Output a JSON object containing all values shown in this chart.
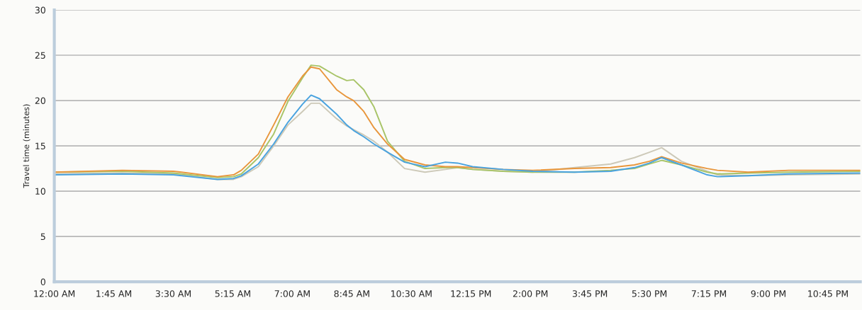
{
  "chart_data": {
    "type": "line",
    "ylabel": "Travel time (minutes)",
    "xlim": [
      0,
      23.7
    ],
    "ylim": [
      0,
      30
    ],
    "xticks": [
      {
        "value": 0,
        "label": "12:00 AM"
      },
      {
        "value": 1.75,
        "label": "1:45 AM"
      },
      {
        "value": 3.5,
        "label": "3:30 AM"
      },
      {
        "value": 5.25,
        "label": "5:15 AM"
      },
      {
        "value": 7,
        "label": "7:00 AM"
      },
      {
        "value": 8.75,
        "label": "8:45 AM"
      },
      {
        "value": 10.5,
        "label": "10:30 AM"
      },
      {
        "value": 12.25,
        "label": "12:15 PM"
      },
      {
        "value": 14,
        "label": "2:00 PM"
      },
      {
        "value": 15.75,
        "label": "3:45 PM"
      },
      {
        "value": 17.5,
        "label": "5:30 PM"
      },
      {
        "value": 19.25,
        "label": "7:15 PM"
      },
      {
        "value": 21,
        "label": "9:00 PM"
      },
      {
        "value": 22.75,
        "label": "10:45 PM"
      }
    ],
    "yticks": [
      0,
      5,
      10,
      15,
      20,
      25,
      30
    ],
    "grid": "y",
    "marker": "none",
    "line_style": "solid",
    "x": [
      0,
      2,
      3.5,
      4.8,
      5.27,
      5.5,
      6.0,
      6.45,
      6.87,
      7.3,
      7.55,
      7.8,
      8.3,
      8.6,
      8.8,
      9.1,
      9.4,
      9.8,
      10.3,
      10.9,
      11.5,
      11.86,
      12.3,
      13.2,
      14.07,
      15.3,
      16.36,
      17.06,
      17.5,
      17.86,
      18.44,
      19.2,
      19.5,
      20.4,
      21.6,
      23.7
    ],
    "series": [
      {
        "color": "#cdc9b8",
        "values": [
          11.9,
          12.0,
          11.9,
          11.3,
          11.3,
          11.6,
          12.7,
          15.0,
          17.3,
          18.8,
          19.7,
          19.7,
          18.0,
          17.2,
          16.8,
          16.2,
          15.5,
          14.3,
          12.5,
          12.1,
          12.4,
          12.6,
          12.4,
          12.2,
          12.1,
          12.6,
          13.0,
          13.7,
          14.3,
          14.8,
          13.3,
          12.2,
          11.8,
          11.7,
          11.8,
          11.9
        ]
      },
      {
        "color": "#a8c468",
        "values": [
          12.1,
          12.2,
          12.0,
          11.5,
          11.6,
          11.9,
          13.7,
          16.3,
          19.9,
          22.5,
          23.9,
          23.8,
          22.7,
          22.2,
          22.3,
          21.2,
          19.3,
          15.5,
          13.3,
          12.5,
          12.6,
          12.6,
          12.4,
          12.2,
          12.1,
          12.1,
          12.3,
          12.5,
          13.0,
          13.4,
          12.9,
          12.1,
          11.9,
          12.0,
          12.1,
          12.2
        ]
      },
      {
        "color": "#e8963c",
        "values": [
          12.1,
          12.3,
          12.2,
          11.6,
          11.8,
          12.3,
          14.1,
          17.3,
          20.4,
          22.7,
          23.7,
          23.5,
          21.2,
          20.4,
          20.0,
          18.8,
          17.0,
          15.2,
          13.5,
          12.9,
          12.7,
          12.7,
          12.6,
          12.4,
          12.3,
          12.5,
          12.6,
          12.9,
          13.3,
          13.8,
          13.1,
          12.5,
          12.3,
          12.1,
          12.3,
          12.3
        ]
      },
      {
        "color": "#4aa3df",
        "values": [
          11.8,
          11.9,
          11.8,
          11.3,
          11.4,
          11.7,
          13.0,
          15.2,
          17.6,
          19.6,
          20.6,
          20.2,
          18.5,
          17.3,
          16.7,
          16.0,
          15.2,
          14.3,
          13.2,
          12.7,
          13.2,
          13.1,
          12.7,
          12.4,
          12.2,
          12.1,
          12.2,
          12.6,
          13.1,
          13.7,
          12.9,
          11.8,
          11.6,
          11.7,
          11.9,
          12.0
        ]
      }
    ]
  }
}
